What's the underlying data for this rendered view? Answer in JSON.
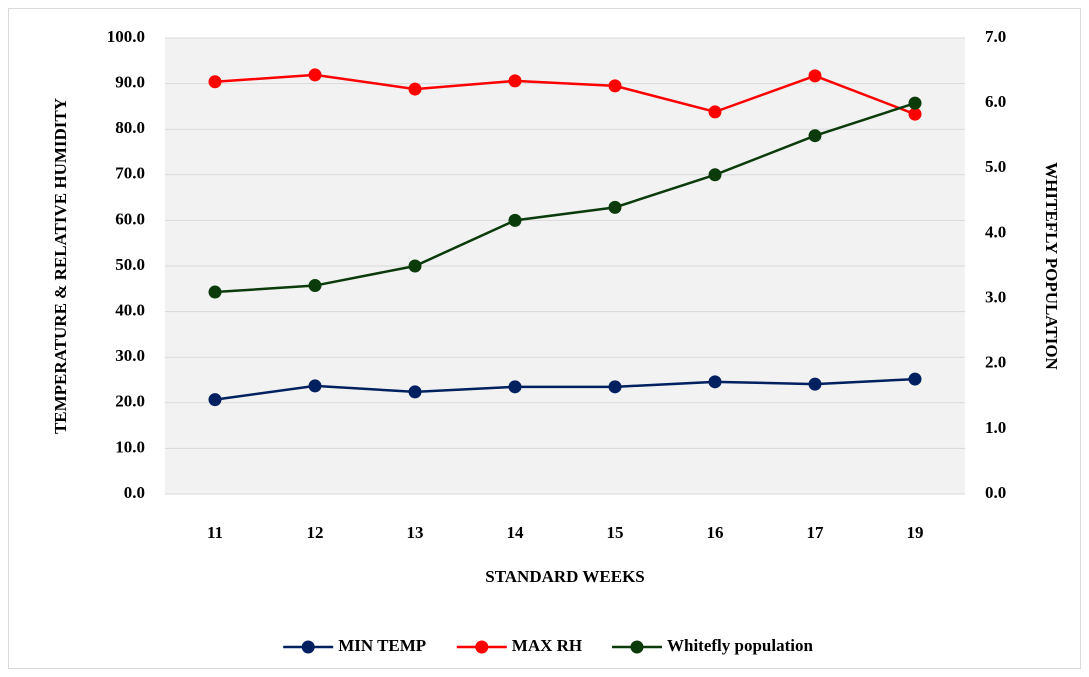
{
  "chart_data": {
    "type": "line",
    "y_label": "TEMPERATURE & RELATIVE HUMIDITY",
    "y2_label": "WHITEFLY POPULATION",
    "x_label": "STANDARD WEEKS",
    "categories": [
      "11",
      "12",
      "13",
      "14",
      "15",
      "16",
      "17",
      "19"
    ],
    "series": [
      {
        "name": "MIN TEMP",
        "color": "#002060",
        "values": [
          20.7,
          23.7,
          22.4,
          23.5,
          23.5,
          24.6,
          24.1,
          25.2
        ]
      },
      {
        "name": "MAX RH",
        "color": "#ff0000",
        "values": [
          90.4,
          91.9,
          88.8,
          90.6,
          89.5,
          83.8,
          91.7,
          83.3
        ]
      },
      {
        "name": "Whitefly population",
        "color": "#0b3b0b",
        "axis": "y2",
        "values": [
          3.1,
          3.2,
          3.5,
          4.2,
          4.4,
          4.9,
          5.5,
          6.0
        ]
      }
    ],
    "ylim": [
      0,
      100
    ],
    "yticks": [
      {
        "value": 0,
        "label": "0.0"
      },
      {
        "value": 10,
        "label": "10.0"
      },
      {
        "value": 20,
        "label": "20.0"
      },
      {
        "value": 30,
        "label": "30.0"
      },
      {
        "value": 40,
        "label": "40.0"
      },
      {
        "value": 50,
        "label": "50.0"
      },
      {
        "value": 60,
        "label": "60.0"
      },
      {
        "value": 70,
        "label": "70.0"
      },
      {
        "value": 80,
        "label": "80.0"
      },
      {
        "value": 90,
        "label": "90.0"
      },
      {
        "value": 100,
        "label": "100.0"
      }
    ],
    "y2lim": [
      0,
      7
    ],
    "y2ticks": [
      {
        "value": 0,
        "label": "0.0"
      },
      {
        "value": 1,
        "label": "1.0"
      },
      {
        "value": 2,
        "label": "2.0"
      },
      {
        "value": 3,
        "label": "3.0"
      },
      {
        "value": 4,
        "label": "4.0"
      },
      {
        "value": 5,
        "label": "5.0"
      },
      {
        "value": 6,
        "label": "6.0"
      },
      {
        "value": 7,
        "label": "7.0"
      }
    ],
    "grid": true,
    "legend": "bottom"
  }
}
